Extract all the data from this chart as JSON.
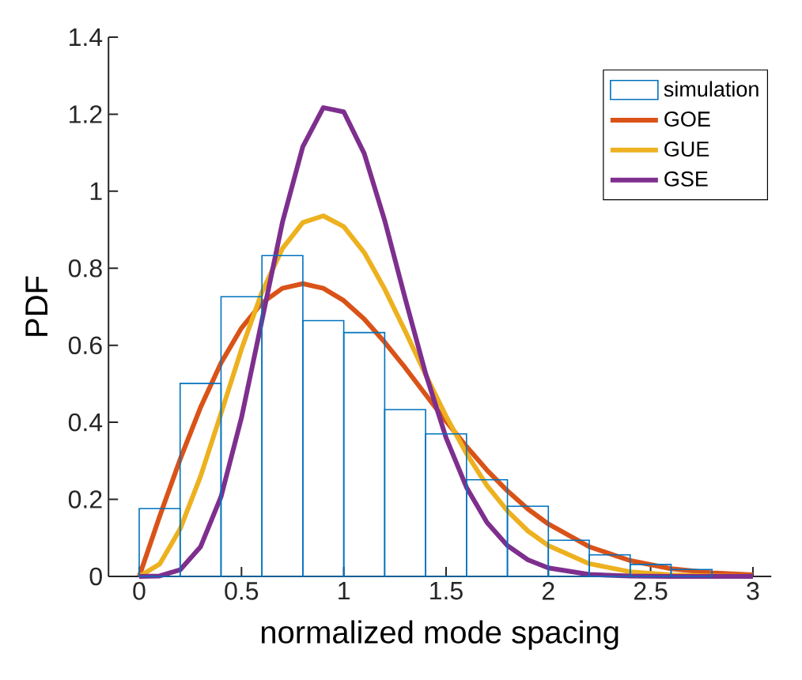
{
  "chart_data": {
    "type": "histogram",
    "xlabel": "normalized mode spacing",
    "ylabel": "PDF",
    "bins": [
      0,
      0.2,
      0.4,
      0.6,
      0.8,
      1.0,
      1.2,
      1.4,
      1.6,
      1.8,
      2.0,
      2.2,
      2.4,
      2.6,
      2.8
    ],
    "series": [
      {
        "name": "simulation",
        "color": "#0072bd",
        "values": [
          0.176,
          0.501,
          0.726,
          0.833,
          0.664,
          0.633,
          0.433,
          0.37,
          0.251,
          0.182,
          0.094,
          0.056,
          0.031,
          0.018
        ]
      },
      {
        "type": "line",
        "name": "GOE",
        "color": "#d95319",
        "x": [
          0,
          0.1,
          0.2,
          0.3,
          0.4,
          0.5,
          0.6,
          0.7,
          0.8,
          0.9,
          1.0,
          1.1,
          1.2,
          1.3,
          1.4,
          1.5,
          1.6,
          1.7,
          1.8,
          1.9,
          2.0,
          2.2,
          2.4,
          2.6,
          2.8,
          3.0
        ],
        "values": [
          0,
          0.156,
          0.304,
          0.439,
          0.554,
          0.645,
          0.71,
          0.748,
          0.76,
          0.748,
          0.716,
          0.668,
          0.608,
          0.542,
          0.472,
          0.403,
          0.337,
          0.276,
          0.222,
          0.175,
          0.136,
          0.077,
          0.041,
          0.02,
          0.009,
          0.004
        ]
      },
      {
        "type": "line",
        "name": "GUE",
        "color": "#edb120",
        "x": [
          0,
          0.1,
          0.2,
          0.3,
          0.4,
          0.5,
          0.6,
          0.7,
          0.8,
          0.9,
          1.0,
          1.1,
          1.2,
          1.3,
          1.4,
          1.5,
          1.6,
          1.7,
          1.8,
          1.9,
          2.0,
          2.2,
          2.4,
          2.6,
          2.8,
          3.0
        ],
        "values": [
          0,
          0.032,
          0.123,
          0.26,
          0.423,
          0.59,
          0.738,
          0.851,
          0.919,
          0.936,
          0.908,
          0.841,
          0.746,
          0.637,
          0.524,
          0.416,
          0.319,
          0.236,
          0.17,
          0.118,
          0.08,
          0.033,
          0.012,
          0.004,
          0.001,
          0
        ]
      },
      {
        "type": "line",
        "name": "GSE",
        "color": "#7e2f8e",
        "x": [
          0,
          0.1,
          0.2,
          0.3,
          0.4,
          0.5,
          0.6,
          0.7,
          0.8,
          0.9,
          1.0,
          1.1,
          1.2,
          1.3,
          1.4,
          1.5,
          1.6,
          1.7,
          1.8,
          1.9,
          2.0,
          2.2,
          2.4,
          2.6,
          2.8,
          3.0
        ],
        "values": [
          0,
          0.001,
          0.017,
          0.077,
          0.207,
          0.412,
          0.665,
          0.919,
          1.116,
          1.217,
          1.206,
          1.098,
          0.924,
          0.722,
          0.527,
          0.36,
          0.231,
          0.14,
          0.08,
          0.043,
          0.022,
          0.005,
          0.001,
          0,
          0,
          0
        ]
      }
    ],
    "xlim": [
      -0.15,
      3.09
    ],
    "ylim": [
      0,
      1.4
    ],
    "xticks": [
      0,
      0.5,
      1,
      1.5,
      2,
      2.5,
      3
    ],
    "yticks": [
      0,
      0.2,
      0.4,
      0.6,
      0.8,
      1,
      1.2,
      1.4
    ],
    "grid": false,
    "legend": "top right"
  }
}
